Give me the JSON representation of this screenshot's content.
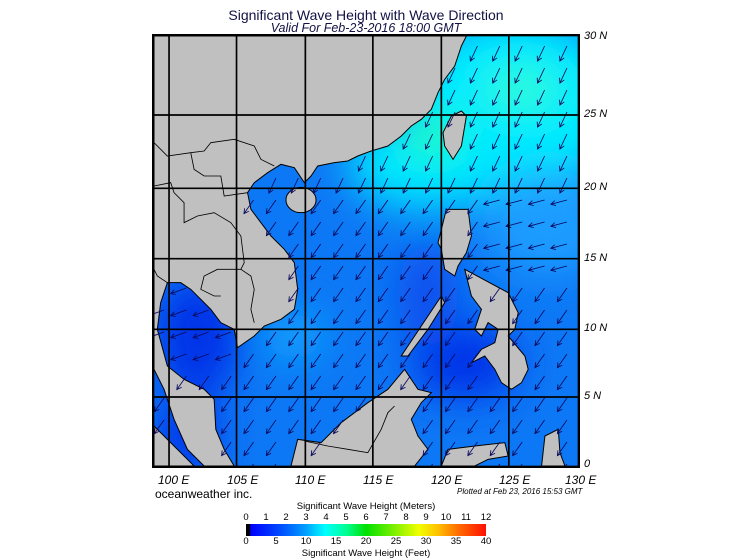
{
  "header": {
    "title": "Significant Wave Height with Wave Direction",
    "subtitle": "Valid For Feb-23-2016 18:00 GMT"
  },
  "map": {
    "lat_labels": [
      "30 N",
      "25 N",
      "20 N",
      "15 N",
      "10 N",
      "5 N",
      "0"
    ],
    "lon_labels": [
      "100 E",
      "105 E",
      "110 E",
      "115 E",
      "120 E",
      "125 E",
      "130 E"
    ],
    "colors": {
      "land": "#c0c0c0",
      "ocean_base": "#0d78f5",
      "ocean_high": "#00eaff",
      "ocean_low": "#0030e8",
      "arrow": "#0a0a60"
    }
  },
  "footer": {
    "brand": "oceanweather inc.",
    "plotted": "Plotted at Feb 23, 2016 15:53 GMT"
  },
  "colorbar": {
    "title_meters": "Significant Wave Height (Meters)",
    "title_feet": "Significant Wave Height (Feet)",
    "meters": [
      "0",
      "1",
      "2",
      "3",
      "4",
      "5",
      "6",
      "7",
      "8",
      "9",
      "10",
      "11",
      "12"
    ],
    "feet": [
      "0",
      "5",
      "10",
      "15",
      "20",
      "25",
      "30",
      "35",
      "40"
    ],
    "range_meters": [
      0,
      12
    ]
  }
}
